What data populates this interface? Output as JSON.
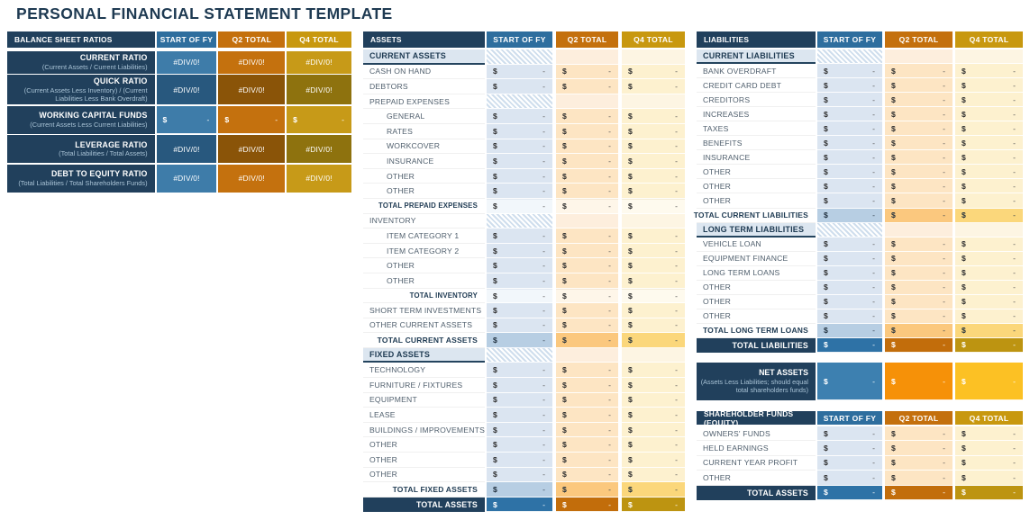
{
  "page_title": "PERSONAL FINANCIAL STATEMENT TEMPLATE",
  "money": {
    "symbol": "$",
    "empty": "-"
  },
  "colors": {
    "navy": "#21405c",
    "header_blue": "#2e6e9e",
    "header_orange": "#c4700d",
    "header_gold": "#c8980f",
    "light_blue": "#dbe5f1",
    "light_orange": "#fde5c3",
    "light_gold": "#fdf1cf",
    "subtotal_blue": "#b7cee3",
    "subtotal_orange": "#fbc87e",
    "subtotal_gold": "#fbd77b",
    "total_blue": "#2e72a6",
    "total_orange": "#c26d0b",
    "total_gold": "#bd9411",
    "net_blue": "#3d80b0",
    "net_orange": "#f69108",
    "net_gold": "#fcc124"
  },
  "tables": {
    "ratios": {
      "headers": [
        "BALANCE SHEET RATIOS",
        "START OF FY",
        "Q2 TOTAL",
        "Q4 TOTAL"
      ],
      "rows": [
        {
          "label": "CURRENT RATIO",
          "sublabel": "(Current Assets / Current Liabilities)",
          "kind": "error",
          "shade": "light",
          "values": [
            "#DIV/0!",
            "#DIV/0!",
            "#DIV/0!"
          ]
        },
        {
          "label": "QUICK RATIO",
          "sublabel": "(Current Assets Less Inventory) / (Current Liabilities Less Bank Overdraft)",
          "kind": "error",
          "shade": "dark",
          "values": [
            "#DIV/0!",
            "#DIV/0!",
            "#DIV/0!"
          ]
        },
        {
          "label": "WORKING CAPITAL FUNDS",
          "sublabel": "(Current Assets Less Current Liabilities)",
          "kind": "money",
          "shade": "light",
          "values": [
            "-",
            "-",
            "-"
          ]
        },
        {
          "label": "LEVERAGE RATIO",
          "sublabel": "(Total Liabilities / Total Assets)",
          "kind": "error",
          "shade": "dark",
          "values": [
            "#DIV/0!",
            "#DIV/0!",
            "#DIV/0!"
          ]
        },
        {
          "label": "DEBT TO EQUITY RATIO",
          "sublabel": "(Total Liabilities / Total Shareholders Funds)",
          "kind": "error",
          "shade": "light",
          "values": [
            "#DIV/0!",
            "#DIV/0!",
            "#DIV/0!"
          ]
        }
      ]
    },
    "assets": {
      "headers": [
        "ASSETS",
        "START OF FY",
        "Q2 TOTAL",
        "Q4 TOTAL"
      ],
      "rows": [
        {
          "type": "section",
          "label": "CURRENT ASSETS"
        },
        {
          "type": "data",
          "label": "CASH ON HAND"
        },
        {
          "type": "data",
          "label": "DEBTORS"
        },
        {
          "type": "group",
          "label": "PREPAID EXPENSES"
        },
        {
          "type": "data",
          "indent": true,
          "label": "GENERAL"
        },
        {
          "type": "data",
          "indent": true,
          "label": "RATES"
        },
        {
          "type": "data",
          "indent": true,
          "label": "WORKCOVER"
        },
        {
          "type": "data",
          "indent": true,
          "label": "INSURANCE"
        },
        {
          "type": "data",
          "indent": true,
          "label": "OTHER"
        },
        {
          "type": "data",
          "indent": true,
          "label": "OTHER"
        },
        {
          "type": "tplain",
          "label": "TOTAL PREPAID EXPENSES"
        },
        {
          "type": "group",
          "label": "INVENTORY"
        },
        {
          "type": "data",
          "indent": true,
          "label": "ITEM CATEGORY 1"
        },
        {
          "type": "data",
          "indent": true,
          "label": "ITEM CATEGORY 2"
        },
        {
          "type": "data",
          "indent": true,
          "label": "OTHER"
        },
        {
          "type": "data",
          "indent": true,
          "label": "OTHER"
        },
        {
          "type": "tplain",
          "label": "TOTAL INVENTORY"
        },
        {
          "type": "data",
          "label": "SHORT TERM INVESTMENTS"
        },
        {
          "type": "data",
          "label": "OTHER CURRENT ASSETS"
        },
        {
          "type": "tsub",
          "label": "TOTAL CURRENT ASSETS"
        },
        {
          "type": "section",
          "label": "FIXED ASSETS"
        },
        {
          "type": "data",
          "label": "TECHNOLOGY"
        },
        {
          "type": "data",
          "label": "FURNITURE / FIXTURES"
        },
        {
          "type": "data",
          "label": "EQUIPMENT"
        },
        {
          "type": "data",
          "label": "LEASE"
        },
        {
          "type": "data",
          "label": "BUILDINGS / IMPROVEMENTS"
        },
        {
          "type": "data",
          "label": "OTHER"
        },
        {
          "type": "data",
          "label": "OTHER"
        },
        {
          "type": "data",
          "label": "OTHER"
        },
        {
          "type": "tsub",
          "label": "TOTAL FIXED ASSETS"
        },
        {
          "type": "total",
          "label": "TOTAL ASSETS"
        }
      ]
    },
    "liabilities": {
      "headers": [
        "LIABILITIES",
        "START OF FY",
        "Q2 TOTAL",
        "Q4 TOTAL"
      ],
      "rows": [
        {
          "type": "section",
          "label": "CURRENT LIABILITIES"
        },
        {
          "type": "data",
          "label": "BANK OVERDRAFT"
        },
        {
          "type": "data",
          "label": "CREDIT CARD DEBT"
        },
        {
          "type": "data",
          "label": "CREDITORS"
        },
        {
          "type": "data",
          "label": "INCREASES"
        },
        {
          "type": "data",
          "label": "TAXES"
        },
        {
          "type": "data",
          "label": "BENEFITS"
        },
        {
          "type": "data",
          "label": "INSURANCE"
        },
        {
          "type": "data",
          "label": "OTHER"
        },
        {
          "type": "data",
          "label": "OTHER"
        },
        {
          "type": "data",
          "label": "OTHER"
        },
        {
          "type": "tsub",
          "label": "TOTAL CURRENT LIABILITIES"
        },
        {
          "type": "section",
          "label": "LONG TERM LIABILITIES"
        },
        {
          "type": "data",
          "label": "VEHICLE LOAN"
        },
        {
          "type": "data",
          "label": "EQUIPMENT FINANCE"
        },
        {
          "type": "data",
          "label": "LONG TERM LOANS"
        },
        {
          "type": "data",
          "label": "OTHER"
        },
        {
          "type": "data",
          "label": "OTHER"
        },
        {
          "type": "data",
          "label": "OTHER"
        },
        {
          "type": "tsub",
          "label": "TOTAL LONG TERM LOANS"
        },
        {
          "type": "total",
          "label": "TOTAL LIABILITIES"
        }
      ]
    },
    "equity": {
      "headers": [
        "SHAREHOLDER FUNDS (EQUITY)",
        "START OF FY",
        "Q2 TOTAL",
        "Q4 TOTAL"
      ],
      "rows": [
        {
          "type": "data",
          "label": "OWNERS' FUNDS"
        },
        {
          "type": "data",
          "label": "HELD EARNINGS"
        },
        {
          "type": "data",
          "label": "CURRENT YEAR PROFIT"
        },
        {
          "type": "data",
          "label": "OTHER"
        },
        {
          "type": "total",
          "label": "TOTAL ASSETS"
        }
      ]
    }
  },
  "net_assets": {
    "label": "NET ASSETS",
    "sublabel": "(Assets Less Liabilities; should equal total shareholders funds)",
    "values": [
      "-",
      "-",
      "-"
    ]
  }
}
